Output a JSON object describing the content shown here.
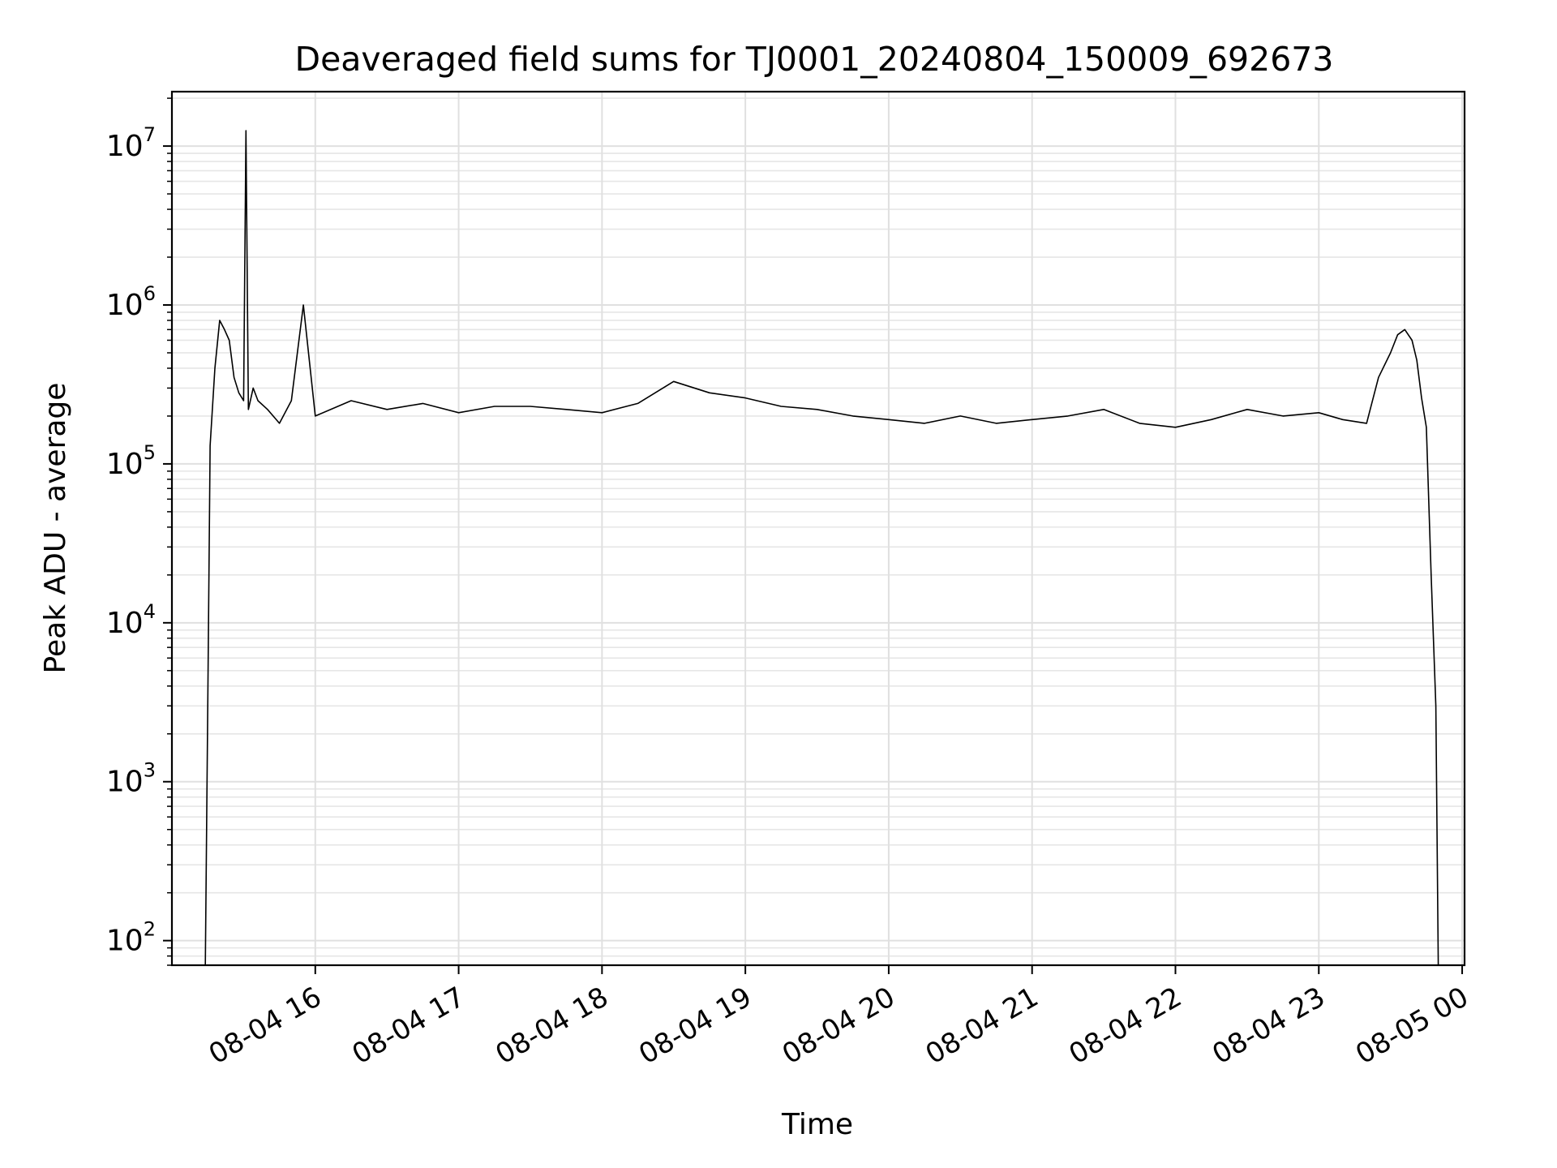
{
  "chart_data": {
    "type": "line",
    "title": "Deaveraged field sums for TJ0001_20240804_150009_692673",
    "xlabel": "Time",
    "ylabel": "Peak ADU - average",
    "yscale": "log",
    "ylim": [
      70,
      22000000
    ],
    "xlim": [
      "2024-08-04 15:00",
      "2024-08-05 00:01"
    ],
    "grid": true,
    "line_color": "#000000",
    "x_ticks": [
      "2024-08-04 16:00",
      "2024-08-04 17:00",
      "2024-08-04 18:00",
      "2024-08-04 19:00",
      "2024-08-04 20:00",
      "2024-08-04 21:00",
      "2024-08-04 22:00",
      "2024-08-04 23:00",
      "2024-08-05 00:00"
    ],
    "x_tick_labels": [
      "08-04 16",
      "08-04 17",
      "08-04 18",
      "08-04 19",
      "08-04 20",
      "08-04 21",
      "08-04 22",
      "08-04 23",
      "08-05 00"
    ],
    "y_ticks": [
      100,
      1000,
      10000,
      100000,
      1000000,
      10000000
    ],
    "y_tick_labels": [
      {
        "base": "10",
        "exp": "2"
      },
      {
        "base": "10",
        "exp": "3"
      },
      {
        "base": "10",
        "exp": "4"
      },
      {
        "base": "10",
        "exp": "5"
      },
      {
        "base": "10",
        "exp": "6"
      },
      {
        "base": "10",
        "exp": "7"
      }
    ],
    "series": [
      {
        "x": [
          "2024-08-04 15:14",
          "2024-08-04 15:15",
          "2024-08-04 15:16",
          "2024-08-04 15:18",
          "2024-08-04 15:20",
          "2024-08-04 15:22",
          "2024-08-04 15:24",
          "2024-08-04 15:26",
          "2024-08-04 15:28",
          "2024-08-04 15:30",
          "2024-08-04 15:31",
          "2024-08-04 15:32",
          "2024-08-04 15:34",
          "2024-08-04 15:36",
          "2024-08-04 15:40",
          "2024-08-04 15:45",
          "2024-08-04 15:50",
          "2024-08-04 15:55",
          "2024-08-04 16:00",
          "2024-08-04 16:15",
          "2024-08-04 16:30",
          "2024-08-04 16:45",
          "2024-08-04 17:00",
          "2024-08-04 17:15",
          "2024-08-04 17:30",
          "2024-08-04 17:45",
          "2024-08-04 18:00",
          "2024-08-04 18:15",
          "2024-08-04 18:30",
          "2024-08-04 18:45",
          "2024-08-04 19:00",
          "2024-08-04 19:15",
          "2024-08-04 19:30",
          "2024-08-04 19:45",
          "2024-08-04 20:00",
          "2024-08-04 20:15",
          "2024-08-04 20:30",
          "2024-08-04 20:45",
          "2024-08-04 21:00",
          "2024-08-04 21:15",
          "2024-08-04 21:30",
          "2024-08-04 21:45",
          "2024-08-04 22:00",
          "2024-08-04 22:15",
          "2024-08-04 22:30",
          "2024-08-04 22:45",
          "2024-08-04 23:00",
          "2024-08-04 23:10",
          "2024-08-04 23:20",
          "2024-08-04 23:25",
          "2024-08-04 23:30",
          "2024-08-04 23:33",
          "2024-08-04 23:36",
          "2024-08-04 23:39",
          "2024-08-04 23:41",
          "2024-08-04 23:43",
          "2024-08-04 23:45",
          "2024-08-04 23:47",
          "2024-08-04 23:49",
          "2024-08-04 23:50"
        ],
        "y": [
          70,
          3000,
          130000,
          400000,
          800000,
          700000,
          600000,
          350000,
          280000,
          250000,
          12500000,
          220000,
          300000,
          250000,
          220000,
          180000,
          250000,
          1000000,
          200000,
          250000,
          220000,
          240000,
          210000,
          230000,
          230000,
          220000,
          210000,
          240000,
          330000,
          280000,
          260000,
          230000,
          220000,
          200000,
          190000,
          180000,
          200000,
          180000,
          190000,
          200000,
          220000,
          180000,
          170000,
          190000,
          220000,
          200000,
          210000,
          190000,
          180000,
          350000,
          500000,
          650000,
          700000,
          600000,
          450000,
          260000,
          170000,
          20000,
          3000,
          70
        ]
      }
    ]
  }
}
